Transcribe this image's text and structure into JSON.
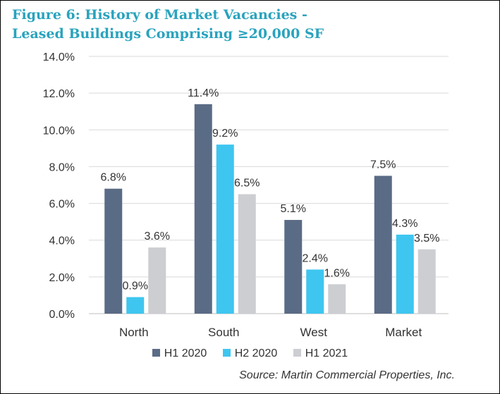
{
  "chart_data": {
    "type": "bar",
    "title_line1": "Figure 6: History of Market Vacancies -",
    "title_line2": "Leased Buildings Comprising ≥20,000 SF",
    "categories": [
      "North",
      "South",
      "West",
      "Market"
    ],
    "series": [
      {
        "name": "H1 2020",
        "color": "#5a6b85",
        "values": [
          6.8,
          11.4,
          5.1,
          7.5
        ],
        "labels": [
          "6.8%",
          "11.4%",
          "5.1%",
          "7.5%"
        ]
      },
      {
        "name": "H2 2020",
        "color": "#3ec6f0",
        "values": [
          0.9,
          9.2,
          2.4,
          4.3
        ],
        "labels": [
          "0.9%",
          "9.2%",
          "2.4%",
          "4.3%"
        ]
      },
      {
        "name": "H1 2021",
        "color": "#cdced2",
        "values": [
          3.6,
          6.5,
          1.6,
          3.5
        ],
        "labels": [
          "3.6%",
          "6.5%",
          "1.6%",
          "3.5%"
        ]
      }
    ],
    "y_ticks": [
      "0.0%",
      "2.0%",
      "4.0%",
      "6.0%",
      "8.0%",
      "10.0%",
      "12.0%",
      "14.0%"
    ],
    "ylim": [
      0,
      14
    ],
    "grid": true,
    "legend_position": "bottom",
    "source": "Source: Martin Commercial Properties, Inc."
  }
}
